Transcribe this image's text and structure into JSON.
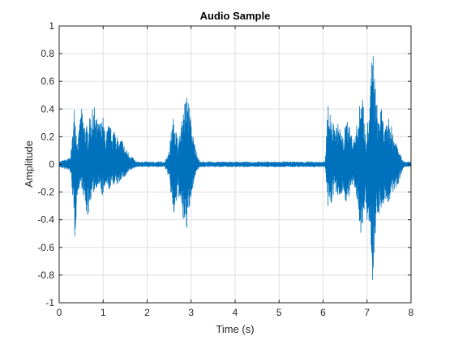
{
  "chart_data": {
    "type": "line",
    "title": "Audio Sample",
    "xlabel": "Time (s)",
    "ylabel": "Amplitude",
    "xlim": [
      0,
      8
    ],
    "ylim": [
      -1,
      1
    ],
    "grid": true,
    "legend": "none",
    "x_ticks": [
      0,
      1,
      2,
      3,
      4,
      5,
      6,
      7,
      8
    ],
    "x_tick_labels": [
      "0",
      "1",
      "2",
      "3",
      "4",
      "5",
      "6",
      "7",
      "8"
    ],
    "y_ticks": [
      -1,
      -0.8,
      -0.6,
      -0.4,
      -0.2,
      0,
      0.2,
      0.4,
      0.6,
      0.8,
      1
    ],
    "y_tick_labels": [
      "-1",
      "-0.8",
      "-0.6",
      "-0.4",
      "-0.2",
      "0",
      "0.2",
      "0.4",
      "0.6",
      "0.8",
      "1"
    ],
    "series": [
      {
        "color": "#0072bd",
        "envelope": {
          "t": [
            0,
            0.25,
            0.3,
            0.35,
            0.42,
            0.5,
            0.58,
            0.65,
            0.72,
            0.8,
            0.88,
            0.95,
            1.0,
            1.05,
            1.12,
            1.2,
            1.28,
            1.35,
            1.42,
            1.5,
            1.6,
            1.7,
            1.75,
            1.8,
            2.4,
            2.5,
            2.55,
            2.62,
            2.7,
            2.78,
            2.85,
            2.92,
            2.98,
            3.05,
            3.12,
            3.2,
            3.3,
            6.05,
            6.1,
            6.18,
            6.25,
            6.35,
            6.45,
            6.55,
            6.62,
            6.7,
            6.8,
            6.9,
            6.95,
            7.0,
            7.05,
            7.12,
            7.18,
            7.25,
            7.32,
            7.4,
            7.5,
            7.6,
            7.7,
            7.8,
            7.85,
            8.0
          ],
          "upper": [
            0.02,
            0.05,
            0.2,
            0.45,
            0.15,
            0.42,
            0.3,
            0.28,
            0.38,
            0.42,
            0.3,
            0.32,
            0.35,
            0.2,
            0.3,
            0.25,
            0.28,
            0.15,
            0.2,
            0.12,
            0.08,
            0.04,
            0.02,
            0.02,
            0.02,
            0.1,
            0.25,
            0.38,
            0.15,
            0.3,
            0.45,
            0.54,
            0.35,
            0.2,
            0.1,
            0.02,
            0.02,
            0.02,
            0.45,
            0.35,
            0.28,
            0.3,
            0.2,
            0.35,
            0.25,
            0.18,
            0.35,
            0.6,
            0.2,
            0.3,
            0.35,
            0.92,
            0.6,
            0.35,
            0.42,
            0.25,
            0.35,
            0.22,
            0.15,
            0.05,
            0.02,
            0.02
          ],
          "lower": [
            -0.02,
            -0.05,
            -0.2,
            -0.58,
            -0.2,
            -0.15,
            -0.3,
            -0.4,
            -0.25,
            -0.2,
            -0.15,
            -0.2,
            -0.25,
            -0.15,
            -0.2,
            -0.15,
            -0.15,
            -0.15,
            -0.1,
            -0.1,
            -0.05,
            -0.03,
            -0.02,
            -0.02,
            -0.02,
            -0.1,
            -0.25,
            -0.42,
            -0.2,
            -0.35,
            -0.5,
            -0.45,
            -0.3,
            -0.15,
            -0.05,
            -0.02,
            -0.02,
            -0.02,
            -0.35,
            -0.3,
            -0.2,
            -0.25,
            -0.2,
            -0.3,
            -0.2,
            -0.15,
            -0.35,
            -0.6,
            -0.25,
            -0.4,
            -0.45,
            -0.86,
            -0.55,
            -0.35,
            -0.38,
            -0.25,
            -0.3,
            -0.2,
            -0.15,
            -0.05,
            -0.02,
            -0.02
          ]
        }
      }
    ]
  }
}
